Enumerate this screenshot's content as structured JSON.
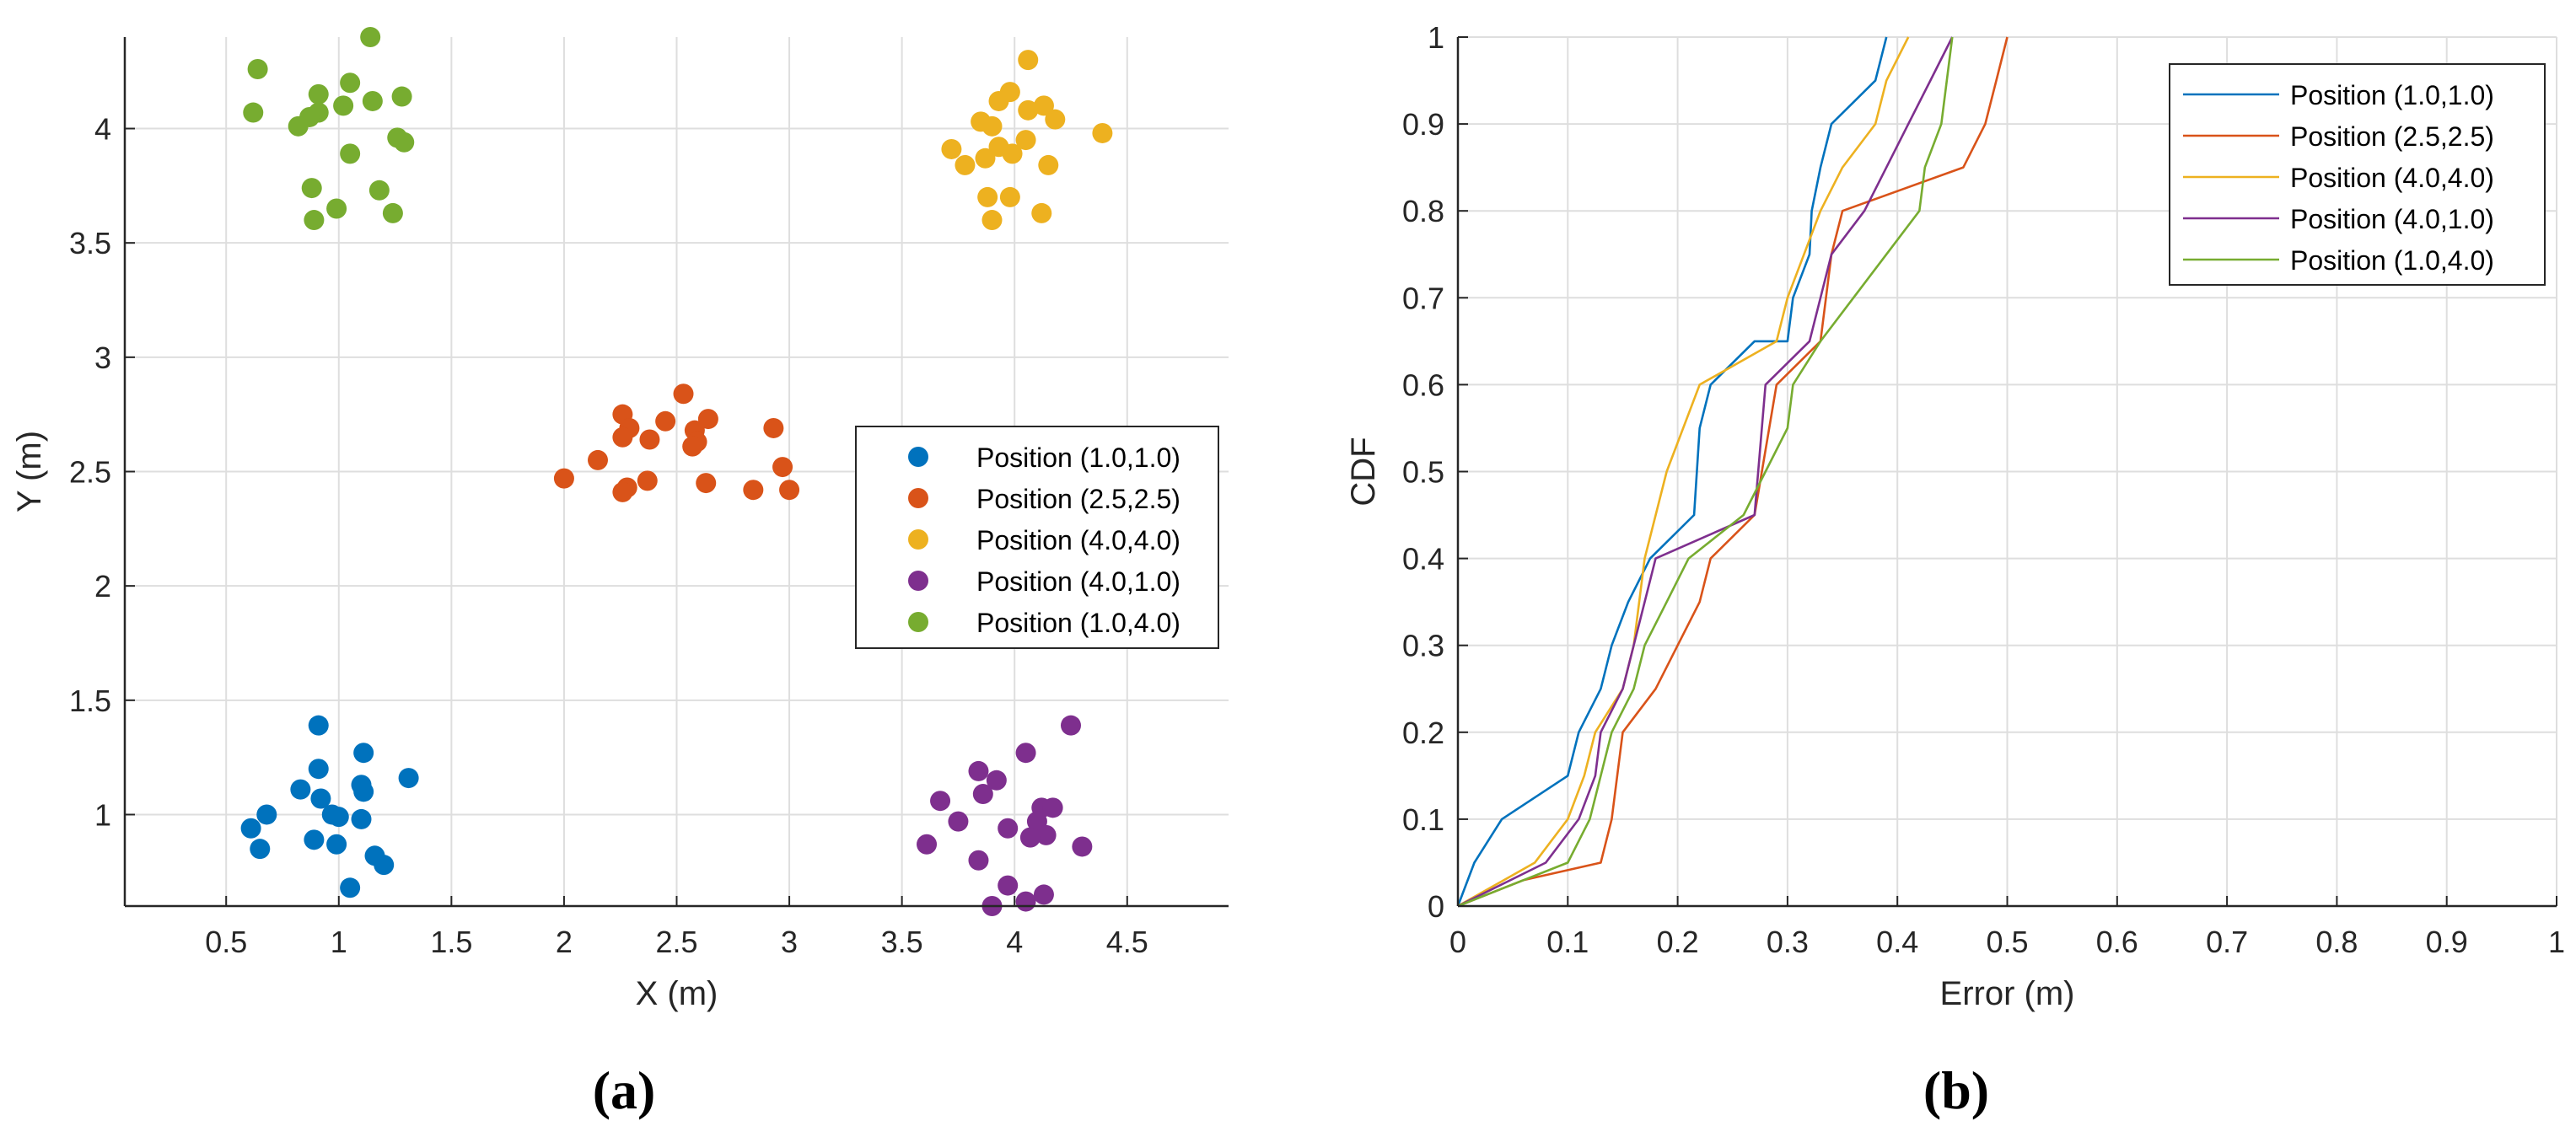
{
  "chart_data": [
    {
      "type": "scatter",
      "panel_label": "(a)",
      "xlabel": "X (m)",
      "ylabel": "Y (m)",
      "xlim": [
        0.05,
        4.95
      ],
      "ylim": [
        0.6,
        4.4
      ],
      "xticks": [
        "0.5",
        "1",
        "1.5",
        "2",
        "2.5",
        "3",
        "3.5",
        "4",
        "4.5"
      ],
      "xtick_values": [
        0.5,
        1,
        1.5,
        2,
        2.5,
        3,
        3.5,
        4,
        4.5
      ],
      "yticks": [
        "1",
        "1.5",
        "2",
        "2.5",
        "3",
        "3.5",
        "4"
      ],
      "ytick_values": [
        1,
        1.5,
        2,
        2.5,
        3,
        3.5,
        4
      ],
      "grid": true,
      "legend_position": "middle-right",
      "series": [
        {
          "name": "Position (1.0,1.0)",
          "color": "#0072BD",
          "points": [
            [
              0.91,
              1.39
            ],
            [
              1.11,
              1.27
            ],
            [
              1.31,
              1.16
            ],
            [
              0.91,
              1.2
            ],
            [
              0.83,
              1.11
            ],
            [
              1.1,
              1.13
            ],
            [
              1.11,
              1.1
            ],
            [
              0.92,
              1.07
            ],
            [
              0.68,
              1.0
            ],
            [
              0.97,
              1.0
            ],
            [
              1.0,
              0.99
            ],
            [
              1.1,
              0.98
            ],
            [
              0.61,
              0.94
            ],
            [
              0.89,
              0.89
            ],
            [
              0.99,
              0.87
            ],
            [
              0.65,
              0.85
            ],
            [
              1.16,
              0.82
            ],
            [
              1.2,
              0.78
            ],
            [
              1.05,
              0.68
            ]
          ]
        },
        {
          "name": "Position (2.5,2.5)",
          "color": "#D95319",
          "points": [
            [
              2.53,
              2.84
            ],
            [
              2.26,
              2.75
            ],
            [
              2.64,
              2.73
            ],
            [
              2.45,
              2.72
            ],
            [
              2.29,
              2.69
            ],
            [
              2.93,
              2.69
            ],
            [
              2.58,
              2.68
            ],
            [
              2.26,
              2.65
            ],
            [
              2.38,
              2.64
            ],
            [
              2.59,
              2.63
            ],
            [
              2.57,
              2.61
            ],
            [
              2.15,
              2.55
            ],
            [
              2.97,
              2.52
            ],
            [
              2.0,
              2.47
            ],
            [
              2.37,
              2.46
            ],
            [
              2.63,
              2.45
            ],
            [
              2.28,
              2.43
            ],
            [
              2.84,
              2.42
            ],
            [
              3.0,
              2.42
            ],
            [
              2.26,
              2.41
            ]
          ]
        },
        {
          "name": "Position (4.0,4.0)",
          "color": "#EDB120",
          "points": [
            [
              4.06,
              4.3
            ],
            [
              3.98,
              4.16
            ],
            [
              3.93,
              4.12
            ],
            [
              4.13,
              4.1
            ],
            [
              4.06,
              4.08
            ],
            [
              4.18,
              4.04
            ],
            [
              3.85,
              4.03
            ],
            [
              3.9,
              4.01
            ],
            [
              4.39,
              3.98
            ],
            [
              4.05,
              3.95
            ],
            [
              3.93,
              3.92
            ],
            [
              3.72,
              3.91
            ],
            [
              3.99,
              3.89
            ],
            [
              3.87,
              3.87
            ],
            [
              3.78,
              3.84
            ],
            [
              4.15,
              3.84
            ],
            [
              3.88,
              3.7
            ],
            [
              3.98,
              3.7
            ],
            [
              4.12,
              3.63
            ],
            [
              3.9,
              3.6
            ]
          ]
        },
        {
          "name": "Position (4.0,1.0)",
          "color": "#7E2F8E",
          "points": [
            [
              4.25,
              1.39
            ],
            [
              4.05,
              1.27
            ],
            [
              3.84,
              1.19
            ],
            [
              3.92,
              1.15
            ],
            [
              3.86,
              1.09
            ],
            [
              3.67,
              1.06
            ],
            [
              4.12,
              1.03
            ],
            [
              4.17,
              1.03
            ],
            [
              3.75,
              0.97
            ],
            [
              4.1,
              0.97
            ],
            [
              3.97,
              0.94
            ],
            [
              4.14,
              0.91
            ],
            [
              4.07,
              0.9
            ],
            [
              3.61,
              0.87
            ],
            [
              4.3,
              0.86
            ],
            [
              3.84,
              0.8
            ],
            [
              3.97,
              0.69
            ],
            [
              4.13,
              0.65
            ],
            [
              4.05,
              0.62
            ],
            [
              3.9,
              0.6
            ]
          ]
        },
        {
          "name": "Position (1.0,4.0)",
          "color": "#77AC30",
          "points": [
            [
              1.14,
              4.4
            ],
            [
              0.64,
              4.26
            ],
            [
              1.05,
              4.2
            ],
            [
              0.91,
              4.15
            ],
            [
              1.28,
              4.14
            ],
            [
              1.15,
              4.12
            ],
            [
              1.02,
              4.1
            ],
            [
              0.62,
              4.07
            ],
            [
              0.91,
              4.07
            ],
            [
              0.87,
              4.05
            ],
            [
              0.82,
              4.01
            ],
            [
              1.26,
              3.96
            ],
            [
              1.29,
              3.94
            ],
            [
              1.05,
              3.89
            ],
            [
              0.88,
              3.74
            ],
            [
              1.18,
              3.73
            ],
            [
              0.99,
              3.65
            ],
            [
              1.24,
              3.63
            ],
            [
              0.89,
              3.6
            ]
          ]
        }
      ]
    },
    {
      "type": "line",
      "panel_label": "(b)",
      "xlabel": "Error (m)",
      "ylabel": "CDF",
      "xlim": [
        0,
        1
      ],
      "ylim": [
        0,
        1
      ],
      "xticks": [
        "0",
        "0.1",
        "0.2",
        "0.3",
        "0.4",
        "0.5",
        "0.6",
        "0.7",
        "0.8",
        "0.9",
        "1"
      ],
      "xtick_values": [
        0,
        0.1,
        0.2,
        0.3,
        0.4,
        0.5,
        0.6,
        0.7,
        0.8,
        0.9,
        1
      ],
      "yticks": [
        "0",
        "0.1",
        "0.2",
        "0.3",
        "0.4",
        "0.5",
        "0.6",
        "0.7",
        "0.8",
        "0.9",
        "1"
      ],
      "ytick_values": [
        0,
        0.1,
        0.2,
        0.3,
        0.4,
        0.5,
        0.6,
        0.7,
        0.8,
        0.9,
        1
      ],
      "grid": true,
      "legend_position": "top-right",
      "series": [
        {
          "name": "Position (1.0,1.0)",
          "color": "#0072BD",
          "points": [
            [
              0,
              0
            ],
            [
              0.015,
              0.05
            ],
            [
              0.04,
              0.1
            ],
            [
              0.1,
              0.15
            ],
            [
              0.11,
              0.2
            ],
            [
              0.13,
              0.25
            ],
            [
              0.14,
              0.3
            ],
            [
              0.155,
              0.35
            ],
            [
              0.175,
              0.4
            ],
            [
              0.215,
              0.45
            ],
            [
              0.22,
              0.55
            ],
            [
              0.23,
              0.6
            ],
            [
              0.27,
              0.65
            ],
            [
              0.3,
              0.65
            ],
            [
              0.305,
              0.7
            ],
            [
              0.32,
              0.75
            ],
            [
              0.322,
              0.8
            ],
            [
              0.33,
              0.85
            ],
            [
              0.34,
              0.9
            ],
            [
              0.38,
              0.95
            ],
            [
              0.39,
              1.0
            ]
          ]
        },
        {
          "name": "Position (2.5,2.5)",
          "color": "#D95319",
          "points": [
            [
              0,
              0
            ],
            [
              0.06,
              0.03
            ],
            [
              0.13,
              0.05
            ],
            [
              0.14,
              0.1
            ],
            [
              0.15,
              0.2
            ],
            [
              0.18,
              0.25
            ],
            [
              0.2,
              0.3
            ],
            [
              0.22,
              0.35
            ],
            [
              0.23,
              0.4
            ],
            [
              0.27,
              0.45
            ],
            [
              0.29,
              0.6
            ],
            [
              0.33,
              0.65
            ],
            [
              0.34,
              0.75
            ],
            [
              0.35,
              0.8
            ],
            [
              0.46,
              0.85
            ],
            [
              0.48,
              0.9
            ],
            [
              0.49,
              0.95
            ],
            [
              0.5,
              1.0
            ]
          ]
        },
        {
          "name": "Position (4.0,4.0)",
          "color": "#EDB120",
          "points": [
            [
              0,
              0
            ],
            [
              0.07,
              0.05
            ],
            [
              0.1,
              0.1
            ],
            [
              0.115,
              0.15
            ],
            [
              0.125,
              0.2
            ],
            [
              0.15,
              0.25
            ],
            [
              0.16,
              0.3
            ],
            [
              0.17,
              0.4
            ],
            [
              0.19,
              0.5
            ],
            [
              0.22,
              0.6
            ],
            [
              0.29,
              0.65
            ],
            [
              0.3,
              0.7
            ],
            [
              0.33,
              0.8
            ],
            [
              0.35,
              0.85
            ],
            [
              0.38,
              0.9
            ],
            [
              0.39,
              0.95
            ],
            [
              0.41,
              1.0
            ]
          ]
        },
        {
          "name": "Position (4.0,1.0)",
          "color": "#7E2F8E",
          "points": [
            [
              0,
              0
            ],
            [
              0.08,
              0.05
            ],
            [
              0.11,
              0.1
            ],
            [
              0.125,
              0.15
            ],
            [
              0.13,
              0.2
            ],
            [
              0.15,
              0.25
            ],
            [
              0.16,
              0.3
            ],
            [
              0.17,
              0.35
            ],
            [
              0.18,
              0.4
            ],
            [
              0.27,
              0.45
            ],
            [
              0.28,
              0.6
            ],
            [
              0.32,
              0.65
            ],
            [
              0.34,
              0.75
            ],
            [
              0.37,
              0.8
            ],
            [
              0.39,
              0.85
            ],
            [
              0.41,
              0.9
            ],
            [
              0.43,
              0.95
            ],
            [
              0.45,
              1.0
            ]
          ]
        },
        {
          "name": "Position (1.0,4.0)",
          "color": "#77AC30",
          "points": [
            [
              0,
              0
            ],
            [
              0.1,
              0.05
            ],
            [
              0.12,
              0.1
            ],
            [
              0.13,
              0.15
            ],
            [
              0.14,
              0.2
            ],
            [
              0.16,
              0.25
            ],
            [
              0.17,
              0.3
            ],
            [
              0.19,
              0.35
            ],
            [
              0.21,
              0.4
            ],
            [
              0.26,
              0.45
            ],
            [
              0.28,
              0.5
            ],
            [
              0.3,
              0.55
            ],
            [
              0.305,
              0.6
            ],
            [
              0.33,
              0.65
            ],
            [
              0.36,
              0.7
            ],
            [
              0.42,
              0.8
            ],
            [
              0.425,
              0.85
            ],
            [
              0.44,
              0.9
            ],
            [
              0.445,
              0.95
            ],
            [
              0.45,
              1.0
            ]
          ]
        }
      ]
    }
  ]
}
